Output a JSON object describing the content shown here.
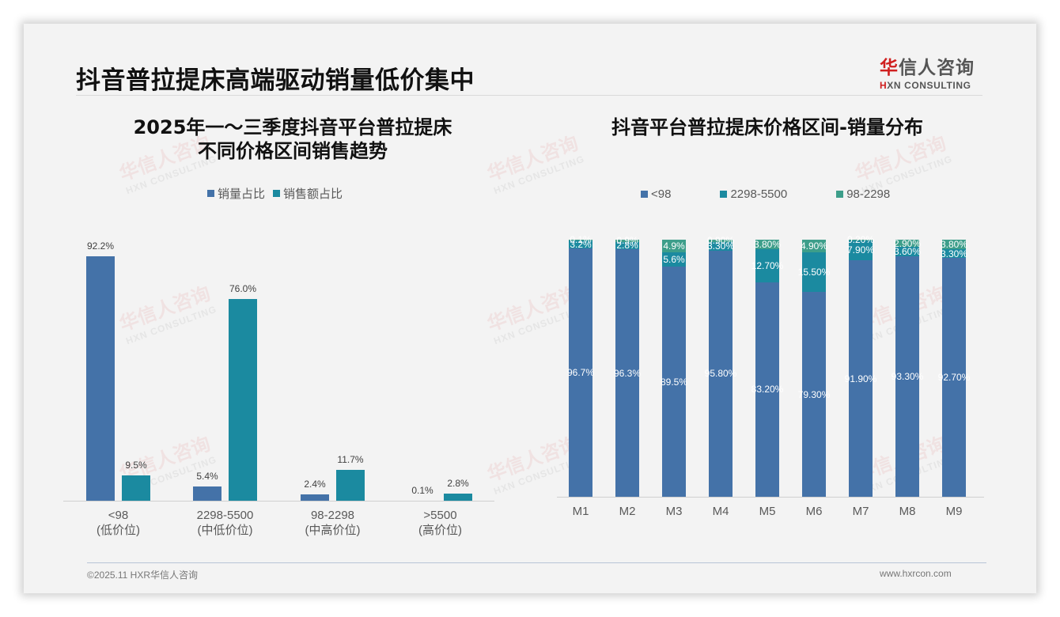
{
  "page": {
    "title": "抖音普拉提床高端驱动销量低价集中",
    "logo": {
      "cn_red": "华",
      "cn_rest": "信人咨询",
      "en_mark": "H",
      "en_rest": "XN CONSULTING"
    },
    "watermark": {
      "cn": "华信人咨询",
      "en": "HXN CONSULTING"
    },
    "footer": {
      "left": "©2025.11 HXR华信人咨询",
      "right": "www.hxrcon.com"
    }
  },
  "colors": {
    "series1": "#4472a8",
    "series2": "#1b8aa0",
    "series3": "#3d9e8a",
    "background": "#f3f3f3"
  },
  "chart_data": [
    {
      "type": "bar",
      "title": "2025年一～三季度抖音平台普拉提床 不同价格区间销售趋势",
      "title_lines": [
        "2025年一～三季度抖音平台普拉提床",
        "不同价格区间销售趋势"
      ],
      "categories": [
        "<98",
        "2298-5500",
        "98-2298",
        ">5500"
      ],
      "category_sublabels": [
        "(低价位)",
        "(中低价位)",
        "(中高价位)",
        "(高价位)"
      ],
      "series": [
        {
          "name": "销量占比",
          "values": [
            92.2,
            5.4,
            2.4,
            0.1
          ],
          "labels": [
            "92.2%",
            "5.4%",
            "2.4%",
            "0.1%"
          ]
        },
        {
          "name": "销售额占比",
          "values": [
            9.5,
            76.0,
            11.7,
            2.8
          ],
          "labels": [
            "9.5%",
            "76.0%",
            "11.7%",
            "2.8%"
          ]
        }
      ],
      "xlabel": "",
      "ylabel": "",
      "ylim": [
        0,
        100
      ],
      "grid": false,
      "legend_position": "top"
    },
    {
      "type": "bar",
      "stacked": true,
      "title": "抖音平台普拉提床价格区间-销量分布",
      "categories": [
        "M1",
        "M2",
        "M3",
        "M4",
        "M5",
        "M6",
        "M7",
        "M8",
        "M9"
      ],
      "series": [
        {
          "name": "<98",
          "values": [
            96.7,
            96.3,
            89.5,
            95.8,
            83.2,
            79.3,
            91.9,
            93.3,
            92.7
          ],
          "labels": [
            "96.7%",
            "96.3%",
            "89.5%",
            "95.80%",
            "83.20%",
            "79.30%",
            "91.90%",
            "93.30%",
            "92.70%"
          ]
        },
        {
          "name": "2298-5500",
          "values": [
            3.2,
            2.8,
            5.6,
            3.3,
            12.7,
            15.5,
            7.9,
            3.6,
            3.3
          ],
          "labels": [
            "3.2%",
            "2.8%",
            "5.6%",
            "3.30%",
            "12.70%",
            "15.50%",
            "7.90%",
            "3.60%",
            "3.30%"
          ]
        },
        {
          "name": "98-2298",
          "values": [
            0.1,
            0.9,
            4.9,
            0.9,
            3.8,
            4.9,
            0.2,
            2.9,
            3.8
          ],
          "labels": [
            "0.1%",
            "0.9%",
            "4.9%",
            "0.90%",
            "3.80%",
            "4.90%",
            "0.20%",
            "2.90%",
            "3.80%"
          ]
        }
      ],
      "xlabel": "",
      "ylabel": "",
      "ylim": [
        0,
        100
      ],
      "grid": false,
      "legend_position": "top"
    }
  ]
}
